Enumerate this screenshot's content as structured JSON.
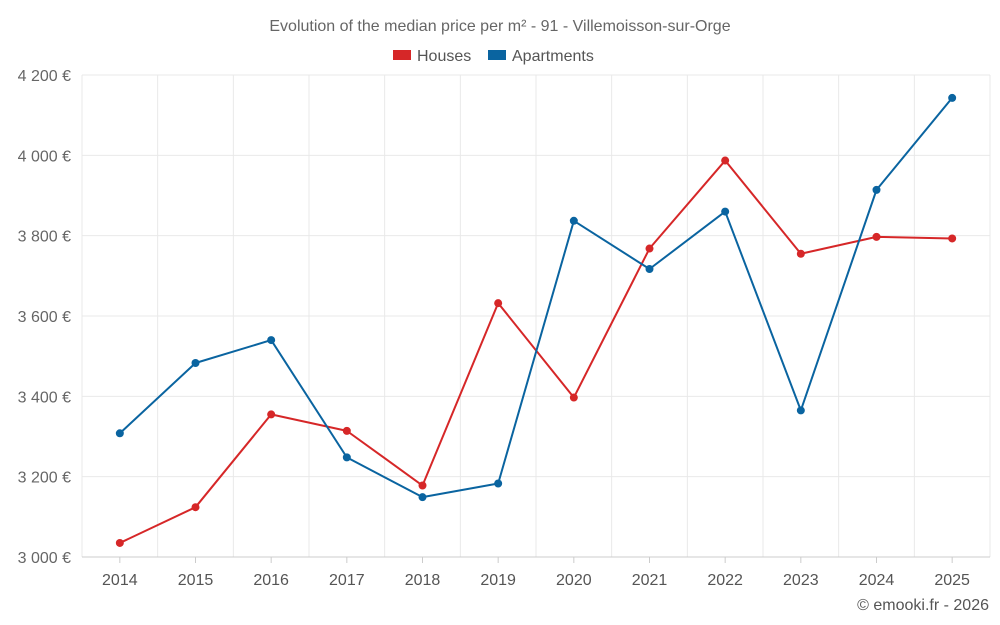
{
  "chart_data": {
    "type": "line",
    "title": "Evolution of the median price per m² - 91 - Villemoisson-sur-Orge",
    "xlabel": "",
    "ylabel": "",
    "categories": [
      "2014",
      "2015",
      "2016",
      "2017",
      "2018",
      "2019",
      "2020",
      "2021",
      "2022",
      "2023",
      "2024",
      "2025"
    ],
    "ylim": [
      3000,
      4200
    ],
    "yticks": [
      3000,
      3200,
      3400,
      3600,
      3800,
      4000,
      4200
    ],
    "ytick_labels": [
      "3 000 €",
      "3 200 €",
      "3 400 €",
      "3 600 €",
      "3 800 €",
      "4 000 €",
      "4 200 €"
    ],
    "grid": true,
    "legend_position": "top-center",
    "series": [
      {
        "name": "Houses",
        "color": "#d62728",
        "values": [
          3035,
          3124,
          3355,
          3314,
          3178,
          3632,
          3397,
          3768,
          3987,
          3755,
          3797,
          3793
        ]
      },
      {
        "name": "Apartments",
        "color": "#0a64a0",
        "values": [
          3308,
          3483,
          3540,
          3248,
          3149,
          3183,
          3837,
          3717,
          3860,
          3365,
          3914,
          4143
        ]
      }
    ]
  },
  "credit": "© emooki.fr - 2026"
}
